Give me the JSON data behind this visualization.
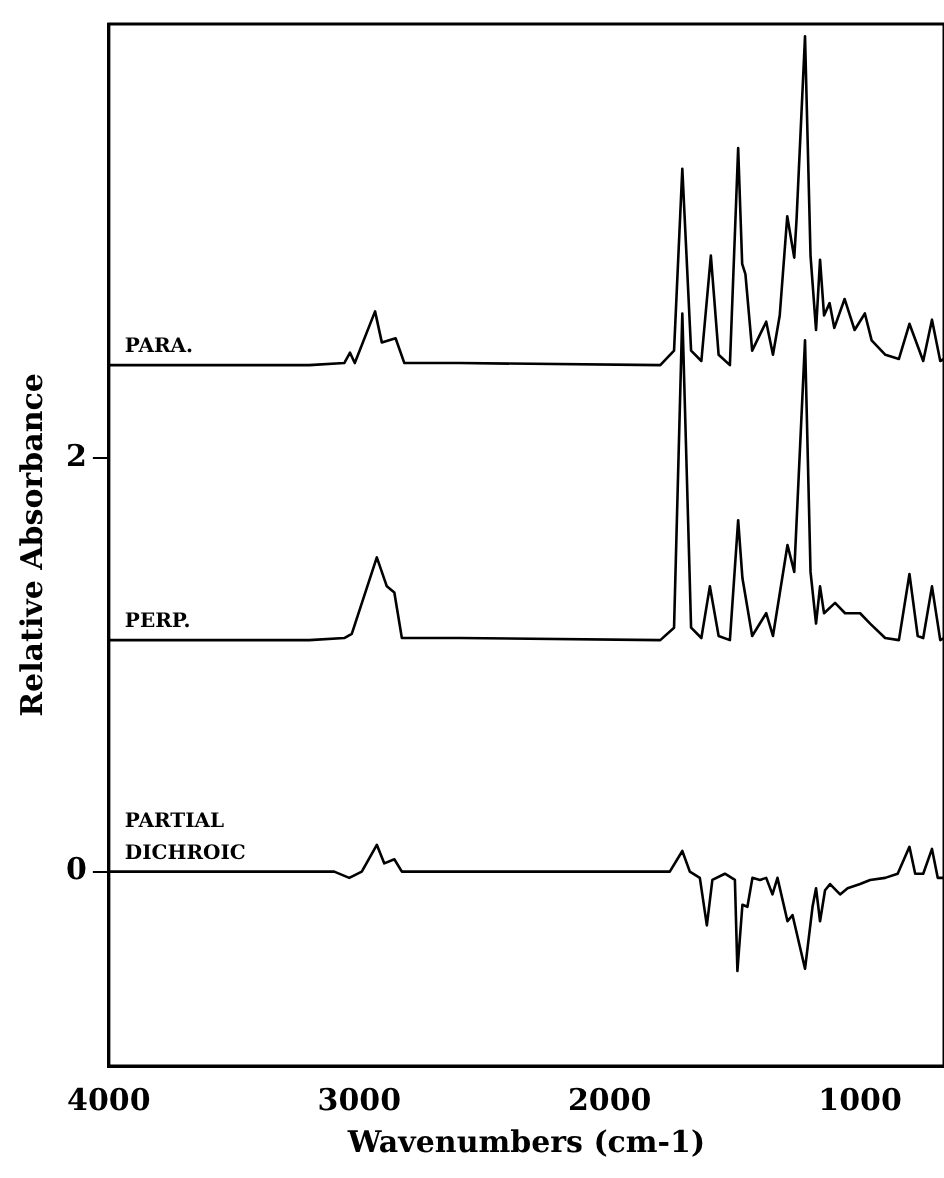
{
  "chart_data": {
    "type": "line",
    "xlabel": "Wavenumbers (cm-1)",
    "ylabel": "Relative Absorbance",
    "xlim": [
      4000,
      665
    ],
    "ylim": [
      -0.94,
      4.1
    ],
    "xticks": [
      4000,
      3000,
      2000,
      1000
    ],
    "yticks": [
      0,
      2
    ],
    "grid": false,
    "legend": false,
    "marker": "none",
    "line_style": "solid",
    "series": [
      {
        "name": "PARA.",
        "color": "#000000",
        "x": [
          4000,
          3200,
          3060,
          3037,
          3018,
          2937,
          2910,
          2855,
          2820,
          2600,
          1798,
          1743,
          1710,
          1675,
          1634,
          1596,
          1565,
          1520,
          1487,
          1471,
          1458,
          1431,
          1375,
          1348,
          1321,
          1291,
          1263,
          1254,
          1220,
          1198,
          1176,
          1160,
          1144,
          1122,
          1103,
          1062,
          1022,
          981,
          954,
          899,
          845,
          803,
          748,
          713,
          680,
          665
        ],
        "values": [
          2.45,
          2.45,
          2.46,
          2.51,
          2.46,
          2.71,
          2.56,
          2.58,
          2.46,
          2.46,
          2.45,
          2.52,
          3.4,
          2.52,
          2.47,
          2.98,
          2.5,
          2.45,
          3.5,
          2.94,
          2.89,
          2.52,
          2.66,
          2.5,
          2.69,
          3.17,
          2.97,
          3.15,
          4.04,
          2.98,
          2.62,
          2.96,
          2.69,
          2.75,
          2.63,
          2.77,
          2.62,
          2.7,
          2.57,
          2.5,
          2.48,
          2.65,
          2.47,
          2.67,
          2.47,
          2.48
        ]
      },
      {
        "name": "PERP.",
        "color": "#000000",
        "x": [
          4000,
          3200,
          3060,
          3030,
          2930,
          2890,
          2860,
          2830,
          2600,
          1798,
          1743,
          1710,
          1675,
          1634,
          1600,
          1565,
          1520,
          1487,
          1470,
          1431,
          1375,
          1348,
          1290,
          1263,
          1220,
          1198,
          1176,
          1160,
          1144,
          1100,
          1060,
          1000,
          960,
          900,
          845,
          803,
          770,
          748,
          713,
          680,
          665
        ],
        "values": [
          1.12,
          1.12,
          1.13,
          1.15,
          1.52,
          1.38,
          1.35,
          1.13,
          1.13,
          1.12,
          1.18,
          2.7,
          1.18,
          1.13,
          1.38,
          1.14,
          1.12,
          1.7,
          1.42,
          1.14,
          1.25,
          1.14,
          1.58,
          1.45,
          2.57,
          1.45,
          1.2,
          1.38,
          1.25,
          1.3,
          1.25,
          1.25,
          1.2,
          1.13,
          1.12,
          1.44,
          1.14,
          1.13,
          1.38,
          1.12,
          1.13
        ]
      },
      {
        "name": "PARTIAL DICHROIC",
        "color": "#000000",
        "x": [
          4000,
          3100,
          3040,
          2990,
          2930,
          2900,
          2860,
          2830,
          2600,
          1760,
          1710,
          1680,
          1640,
          1612,
          1590,
          1540,
          1500,
          1490,
          1470,
          1450,
          1430,
          1400,
          1375,
          1350,
          1330,
          1290,
          1270,
          1220,
          1190,
          1176,
          1160,
          1140,
          1120,
          1080,
          1050,
          1000,
          960,
          900,
          850,
          803,
          780,
          748,
          713,
          690,
          665
        ],
        "values": [
          0,
          0,
          -0.03,
          0,
          0.13,
          0.04,
          0.06,
          0,
          0,
          0,
          0.1,
          0,
          -0.03,
          -0.26,
          -0.04,
          -0.01,
          -0.04,
          -0.48,
          -0.16,
          -0.17,
          -0.03,
          -0.04,
          -0.03,
          -0.11,
          -0.03,
          -0.24,
          -0.21,
          -0.47,
          -0.17,
          -0.08,
          -0.24,
          -0.09,
          -0.06,
          -0.11,
          -0.08,
          -0.06,
          -0.04,
          -0.03,
          -0.01,
          0.12,
          -0.01,
          -0.01,
          0.11,
          -0.03,
          -0.03
        ]
      }
    ]
  }
}
